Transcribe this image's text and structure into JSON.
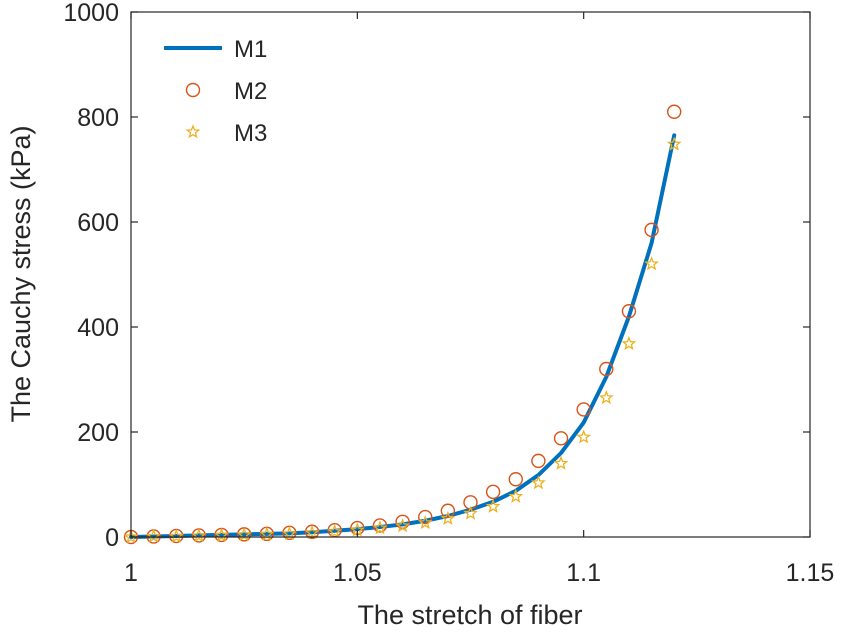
{
  "chart_data": {
    "type": "line",
    "title": "",
    "xlabel": "The stretch of fiber",
    "ylabel": "The Cauchy stress  (kPa)",
    "xlim": [
      1,
      1.15
    ],
    "ylim": [
      0,
      1000
    ],
    "xticks": [
      1,
      1.05,
      1.1,
      1.15
    ],
    "xtick_labels": [
      "1",
      "1.05",
      "1.1",
      "1.15"
    ],
    "yticks": [
      0,
      200,
      400,
      600,
      800,
      1000
    ],
    "ytick_labels": [
      "0",
      "200",
      "400",
      "600",
      "800",
      "1000"
    ],
    "grid": false,
    "legend": {
      "position": "top-left"
    },
    "colors": {
      "M1": "#0072BD",
      "M2": "#D95319",
      "M3": "#EDB120",
      "axis": "#262626"
    },
    "series": [
      {
        "name": "M1",
        "style": "line",
        "x": [
          1,
          1.005,
          1.01,
          1.015,
          1.02,
          1.025,
          1.03,
          1.035,
          1.04,
          1.045,
          1.05,
          1.055,
          1.06,
          1.065,
          1.07,
          1.075,
          1.08,
          1.085,
          1.09,
          1.095,
          1.1,
          1.105,
          1.11,
          1.115,
          1.12
        ],
        "y": [
          0,
          1,
          2,
          3,
          4,
          5,
          6,
          7,
          9,
          12,
          15,
          19,
          24,
          31,
          40,
          52,
          67,
          88,
          118,
          160,
          218,
          305,
          420,
          560,
          765
        ]
      },
      {
        "name": "M2",
        "style": "circle",
        "x": [
          1,
          1.005,
          1.01,
          1.015,
          1.02,
          1.025,
          1.03,
          1.035,
          1.04,
          1.045,
          1.05,
          1.055,
          1.06,
          1.065,
          1.07,
          1.075,
          1.08,
          1.085,
          1.09,
          1.095,
          1.1,
          1.105,
          1.11,
          1.115,
          1.12
        ],
        "y": [
          0,
          1,
          2,
          3,
          4,
          5,
          6,
          8,
          10,
          13,
          17,
          22,
          29,
          38,
          50,
          66,
          86,
          110,
          145,
          188,
          243,
          320,
          430,
          585,
          810
        ]
      },
      {
        "name": "M3",
        "style": "star",
        "x": [
          1,
          1.005,
          1.01,
          1.015,
          1.02,
          1.025,
          1.03,
          1.035,
          1.04,
          1.045,
          1.05,
          1.055,
          1.06,
          1.065,
          1.07,
          1.075,
          1.08,
          1.085,
          1.09,
          1.095,
          1.1,
          1.105,
          1.11,
          1.115,
          1.12
        ],
        "y": [
          0,
          1,
          1,
          2,
          3,
          4,
          5,
          6,
          8,
          10,
          13,
          17,
          21,
          27,
          35,
          45,
          58,
          77,
          103,
          140,
          190,
          265,
          368,
          520,
          748
        ]
      }
    ]
  }
}
